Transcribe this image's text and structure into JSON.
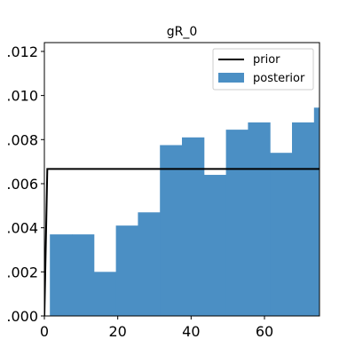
{
  "chart_data": {
    "type": "bar",
    "title": "gR_0",
    "xlim": [
      0,
      75
    ],
    "ylim": [
      0,
      0.0124
    ],
    "x_ticks": [
      0,
      20,
      40,
      60
    ],
    "x_tick_labels": [
      "0",
      "20",
      "40",
      "60"
    ],
    "y_ticks": [
      0.0,
      0.002,
      0.004,
      0.006,
      0.008,
      0.01,
      0.012
    ],
    "y_tick_labels": [
      ".000",
      ".002",
      ".004",
      ".006",
      ".008",
      ".010",
      ".012"
    ],
    "grid": false,
    "legend_position": "top-right",
    "series": [
      {
        "name": "prior",
        "kind": "line",
        "color": "#000000",
        "x": [
          0,
          0.8,
          75
        ],
        "y": [
          0,
          0.00667,
          0.00667
        ]
      },
      {
        "name": "posterior",
        "kind": "histogram",
        "color": "#4b8fc4",
        "bin_edges": [
          1.5,
          7.5,
          13.5,
          19.5,
          25.5,
          31.5,
          37.5,
          43.5,
          49.5,
          55.5,
          61.5,
          67.5,
          73.5,
          79.5
        ],
        "values": [
          0.0037,
          0.0037,
          0.002,
          0.0041,
          0.0047,
          0.00775,
          0.0081,
          0.0064,
          0.00845,
          0.00878,
          0.0074,
          0.00878,
          0.00945
        ]
      }
    ]
  }
}
